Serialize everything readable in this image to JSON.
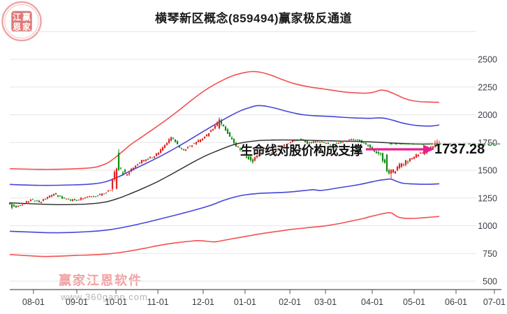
{
  "title": "横琴新区概念(859494)赢家极反通道",
  "annotation": {
    "text": "生命线对股价构成支撑",
    "price_label": "1737.28",
    "arrow_color": "#e81f8e"
  },
  "watermark": {
    "brand": "赢家江恩软件",
    "url": "www.360gann.com",
    "seal_chars": [
      "江",
      "赢",
      "恩",
      "家"
    ]
  },
  "chart_data": {
    "type": "candlestick",
    "title": "横琴新区概念(859494)赢家极反通道",
    "last_price": 1737.28,
    "grid": true,
    "y_axis": {
      "min": 500,
      "max": 2750,
      "tick_step": 250,
      "tick_labels": [
        "500",
        "750",
        "1000",
        "1250",
        "1500",
        "1750",
        "2000",
        "2250",
        "2500"
      ]
    },
    "x_axis": {
      "tick_labels": [
        "08-01",
        "09-01",
        "10-01",
        "11-01",
        "12-01",
        "01-01",
        "02-01",
        "03-01",
        "04-01",
        "05-01",
        "06-01",
        "07-01"
      ],
      "tick_day_index": [
        11.3,
        32,
        50.7,
        70.7,
        92.3,
        112.3,
        133.7,
        150.7,
        173,
        193,
        213,
        231.3
      ]
    },
    "colors": {
      "up_candle": "#e02222",
      "down_candle": "#0d8c0d",
      "upper_red_channel": "#f25050",
      "lower_red_channel": "#f25050",
      "upper_blue_channel": "#4646d8",
      "lower_blue_channel": "#4646d8",
      "life_line": "#2a2a2a",
      "last_price_dash": "#0b9a0b",
      "grid": "#e6e6e6",
      "axis": "#555555",
      "tick_text": "#3c3c46"
    },
    "series": {
      "upper_red": [
        [
          0,
          1515
        ],
        [
          15,
          1508
        ],
        [
          30,
          1512
        ],
        [
          40,
          1525
        ],
        [
          46,
          1560
        ],
        [
          50,
          1610
        ],
        [
          54,
          1672
        ],
        [
          58,
          1735
        ],
        [
          63,
          1800
        ],
        [
          68,
          1865
        ],
        [
          74,
          1945
        ],
        [
          80,
          2030
        ],
        [
          86,
          2120
        ],
        [
          92,
          2205
        ],
        [
          97,
          2265
        ],
        [
          102,
          2315
        ],
        [
          107,
          2355
        ],
        [
          112,
          2380
        ],
        [
          116,
          2390
        ],
        [
          120,
          2382
        ],
        [
          125,
          2355
        ],
        [
          130,
          2318
        ],
        [
          135,
          2285
        ],
        [
          140,
          2262
        ],
        [
          145,
          2245
        ],
        [
          150,
          2232
        ],
        [
          155,
          2218
        ],
        [
          160,
          2205
        ],
        [
          165,
          2198
        ],
        [
          170,
          2195
        ],
        [
          174,
          2205
        ],
        [
          177,
          2222
        ],
        [
          180,
          2215
        ],
        [
          184,
          2185
        ],
        [
          188,
          2150
        ],
        [
          192,
          2128
        ],
        [
          196,
          2118
        ],
        [
          200,
          2115
        ],
        [
          205,
          2112
        ]
      ],
      "upper_blue": [
        [
          0,
          1372
        ],
        [
          15,
          1364
        ],
        [
          30,
          1368
        ],
        [
          40,
          1378
        ],
        [
          46,
          1398
        ],
        [
          52,
          1442
        ],
        [
          58,
          1498
        ],
        [
          64,
          1552
        ],
        [
          70,
          1608
        ],
        [
          76,
          1668
        ],
        [
          82,
          1732
        ],
        [
          88,
          1800
        ],
        [
          94,
          1868
        ],
        [
          100,
          1935
        ],
        [
          105,
          1988
        ],
        [
          110,
          2035
        ],
        [
          114,
          2062
        ],
        [
          118,
          2082
        ],
        [
          122,
          2078
        ],
        [
          127,
          2058
        ],
        [
          132,
          2032
        ],
        [
          137,
          2010
        ],
        [
          142,
          1996
        ],
        [
          147,
          1990
        ],
        [
          152,
          1986
        ],
        [
          157,
          1980
        ],
        [
          162,
          1974
        ],
        [
          167,
          1970
        ],
        [
          172,
          1968
        ],
        [
          176,
          1972
        ],
        [
          179,
          1968
        ],
        [
          183,
          1950
        ],
        [
          187,
          1928
        ],
        [
          191,
          1912
        ],
        [
          195,
          1902
        ],
        [
          199,
          1898
        ],
        [
          202,
          1900
        ],
        [
          205,
          1908
        ]
      ],
      "life_line": [
        [
          0,
          1206
        ],
        [
          8,
          1200
        ],
        [
          16,
          1194
        ],
        [
          24,
          1190
        ],
        [
          32,
          1192
        ],
        [
          40,
          1200
        ],
        [
          46,
          1215
        ],
        [
          52,
          1248
        ],
        [
          58,
          1292
        ],
        [
          64,
          1340
        ],
        [
          70,
          1392
        ],
        [
          76,
          1452
        ],
        [
          82,
          1515
        ],
        [
          88,
          1578
        ],
        [
          94,
          1635
        ],
        [
          99,
          1675
        ],
        [
          104,
          1712
        ],
        [
          108,
          1736
        ],
        [
          112,
          1752
        ],
        [
          116,
          1762
        ],
        [
          120,
          1769
        ],
        [
          125,
          1772
        ],
        [
          130,
          1773
        ],
        [
          136,
          1772
        ],
        [
          142,
          1770
        ],
        [
          148,
          1768
        ],
        [
          154,
          1765
        ],
        [
          160,
          1762
        ],
        [
          166,
          1760
        ],
        [
          172,
          1756
        ],
        [
          178,
          1750
        ],
        [
          184,
          1744
        ],
        [
          190,
          1739
        ],
        [
          195,
          1736
        ],
        [
          199,
          1736
        ],
        [
          202,
          1737
        ]
      ],
      "lower_blue": [
        [
          0,
          950
        ],
        [
          10,
          943
        ],
        [
          20,
          937
        ],
        [
          30,
          940
        ],
        [
          40,
          950
        ],
        [
          48,
          965
        ],
        [
          56,
          992
        ],
        [
          64,
          1025
        ],
        [
          72,
          1062
        ],
        [
          80,
          1100
        ],
        [
          88,
          1140
        ],
        [
          96,
          1185
        ],
        [
          102,
          1228
        ],
        [
          108,
          1262
        ],
        [
          113,
          1280
        ],
        [
          118,
          1290
        ],
        [
          124,
          1296
        ],
        [
          130,
          1300
        ],
        [
          136,
          1308
        ],
        [
          141,
          1318
        ],
        [
          145,
          1324
        ],
        [
          148,
          1318
        ],
        [
          152,
          1326
        ],
        [
          157,
          1342
        ],
        [
          162,
          1356
        ],
        [
          167,
          1372
        ],
        [
          172,
          1392
        ],
        [
          176,
          1408
        ],
        [
          180,
          1418
        ],
        [
          182,
          1420
        ],
        [
          185,
          1398
        ],
        [
          188,
          1382
        ],
        [
          192,
          1377
        ],
        [
          196,
          1374
        ],
        [
          200,
          1374
        ],
        [
          205,
          1378
        ]
      ],
      "lower_red": [
        [
          0,
          740
        ],
        [
          8,
          731
        ],
        [
          16,
          723
        ],
        [
          24,
          726
        ],
        [
          32,
          733
        ],
        [
          40,
          738
        ],
        [
          48,
          748
        ],
        [
          56,
          768
        ],
        [
          64,
          795
        ],
        [
          72,
          825
        ],
        [
          80,
          848
        ],
        [
          86,
          860
        ],
        [
          90,
          866
        ],
        [
          94,
          860
        ],
        [
          98,
          855
        ],
        [
          102,
          868
        ],
        [
          106,
          882
        ],
        [
          110,
          895
        ],
        [
          115,
          912
        ],
        [
          120,
          928
        ],
        [
          125,
          942
        ],
        [
          130,
          955
        ],
        [
          135,
          968
        ],
        [
          140,
          978
        ],
        [
          145,
          988
        ],
        [
          149,
          995
        ],
        [
          153,
          1006
        ],
        [
          158,
          1022
        ],
        [
          163,
          1042
        ],
        [
          168,
          1062
        ],
        [
          172,
          1082
        ],
        [
          176,
          1100
        ],
        [
          179,
          1112
        ],
        [
          182,
          1116
        ],
        [
          185,
          1082
        ],
        [
          188,
          1068
        ],
        [
          192,
          1066
        ],
        [
          196,
          1070
        ],
        [
          200,
          1076
        ],
        [
          205,
          1084
        ]
      ]
    },
    "price_trend": [
      [
        0,
        1205
      ],
      [
        2,
        1185
      ],
      [
        4,
        1168
      ],
      [
        7,
        1200
      ],
      [
        11,
        1235
      ],
      [
        15,
        1212
      ],
      [
        19,
        1255
      ],
      [
        22,
        1285
      ],
      [
        26,
        1250
      ],
      [
        30,
        1232
      ],
      [
        34,
        1238
      ],
      [
        38,
        1262
      ],
      [
        42,
        1270
      ],
      [
        46,
        1288
      ],
      [
        49,
        1330
      ],
      [
        51,
        1480
      ],
      [
        52,
        1560
      ],
      [
        54,
        1500
      ],
      [
        56,
        1468
      ],
      [
        58,
        1480
      ],
      [
        61,
        1545
      ],
      [
        64,
        1585
      ],
      [
        67,
        1608
      ],
      [
        70,
        1628
      ],
      [
        73,
        1678
      ],
      [
        76,
        1745
      ],
      [
        78,
        1795
      ],
      [
        80,
        1760
      ],
      [
        82,
        1695
      ],
      [
        84,
        1680
      ],
      [
        86,
        1712
      ],
      [
        89,
        1740
      ],
      [
        92,
        1775
      ],
      [
        95,
        1815
      ],
      [
        98,
        1880
      ],
      [
        100,
        1945
      ],
      [
        102,
        1920
      ],
      [
        104,
        1855
      ],
      [
        106,
        1800
      ],
      [
        108,
        1745
      ],
      [
        110,
        1700
      ],
      [
        112,
        1655
      ],
      [
        114,
        1618
      ],
      [
        116,
        1588
      ],
      [
        118,
        1615
      ],
      [
        120,
        1655
      ],
      [
        122,
        1688
      ],
      [
        124,
        1672
      ],
      [
        126,
        1655
      ],
      [
        128,
        1672
      ],
      [
        130,
        1700
      ],
      [
        132,
        1725
      ],
      [
        134,
        1748
      ],
      [
        137,
        1768
      ],
      [
        140,
        1775
      ],
      [
        143,
        1745
      ],
      [
        146,
        1758
      ],
      [
        149,
        1752
      ],
      [
        151,
        1748
      ],
      [
        154,
        1722
      ],
      [
        157,
        1738
      ],
      [
        160,
        1755
      ],
      [
        163,
        1772
      ],
      [
        166,
        1780
      ],
      [
        168,
        1765
      ],
      [
        170,
        1742
      ],
      [
        172,
        1722
      ],
      [
        174,
        1688
      ],
      [
        176,
        1662
      ],
      [
        178,
        1640
      ],
      [
        180,
        1560
      ],
      [
        182,
        1480
      ],
      [
        184,
        1488
      ],
      [
        186,
        1522
      ],
      [
        188,
        1552
      ],
      [
        190,
        1575
      ],
      [
        193,
        1612
      ],
      [
        196,
        1645
      ],
      [
        199,
        1660
      ],
      [
        201,
        1685
      ],
      [
        203,
        1715
      ],
      [
        205,
        1737
      ]
    ],
    "candle_count": 206,
    "volatility": {
      "base": 20,
      "zones": [
        [
          0,
          46,
          0.8
        ],
        [
          49,
          58,
          2.2
        ],
        [
          98,
          118,
          1.6
        ],
        [
          176,
          190,
          1.9
        ]
      ]
    },
    "seed": 42,
    "candle_overrides": {
      "1": [
        1196,
        1162,
        1148,
        1200
      ],
      "51": [
        1335,
        1515,
        1326,
        1524
      ],
      "52": [
        1658,
        1505,
        1494,
        1690
      ],
      "100": [
        1878,
        1958,
        1868,
        1977
      ],
      "101": [
        1952,
        1918,
        1898,
        1966
      ],
      "115": [
        1636,
        1590,
        1574,
        1642
      ],
      "116": [
        1598,
        1574,
        1558,
        1612
      ],
      "180": [
        1640,
        1492,
        1482,
        1648
      ],
      "181": [
        1500,
        1472,
        1460,
        1515
      ],
      "182": [
        1470,
        1504,
        1428,
        1510
      ],
      "201": [
        1682,
        1710,
        1675,
        1722
      ],
      "203": [
        1710,
        1732,
        1702,
        1768
      ],
      "204": [
        1728,
        1750,
        1720,
        1778
      ],
      "205": [
        1724,
        1737.28,
        1714,
        1766
      ]
    }
  }
}
